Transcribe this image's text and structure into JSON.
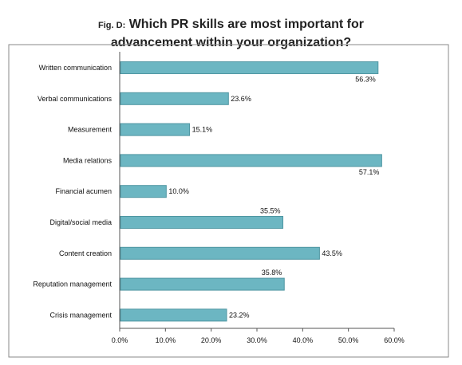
{
  "header": {
    "fig_label": "Fig. D:",
    "title_line1": "Which PR skills are most important for",
    "title_line2": "advancement within your organization?"
  },
  "colors": {
    "bar_fill": "#6cb6c2",
    "bar_stroke": "#4f96a2",
    "frame": "#8a8a8a",
    "axis": "#555555"
  },
  "chart_data": {
    "type": "bar",
    "orientation": "horizontal",
    "title": "Which PR skills are most important for advancement within your organization?",
    "categories": [
      "Written communication",
      "Verbal communications",
      "Measurement",
      "Media relations",
      "Financial acumen",
      "Digital/social media",
      "Content creation",
      "Reputation management",
      "Crisis management"
    ],
    "values": [
      56.3,
      23.6,
      15.1,
      57.1,
      10.0,
      35.5,
      43.5,
      35.8,
      23.2
    ],
    "data_labels": [
      "56.3%",
      "23.6%",
      "15.1%",
      "57.1%",
      "10.0%",
      "35.5%",
      "43.5%",
      "35.8%",
      "23.2%"
    ],
    "xlim": [
      0,
      60
    ],
    "x_ticks": [
      0,
      10,
      20,
      30,
      40,
      50,
      60
    ],
    "x_tick_labels": [
      "0.0%",
      "10.0%",
      "20.0%",
      "30.0%",
      "40.0%",
      "50.0%",
      "60.0%"
    ],
    "xlabel": "",
    "ylabel": "",
    "grid": false,
    "legend": "none"
  }
}
